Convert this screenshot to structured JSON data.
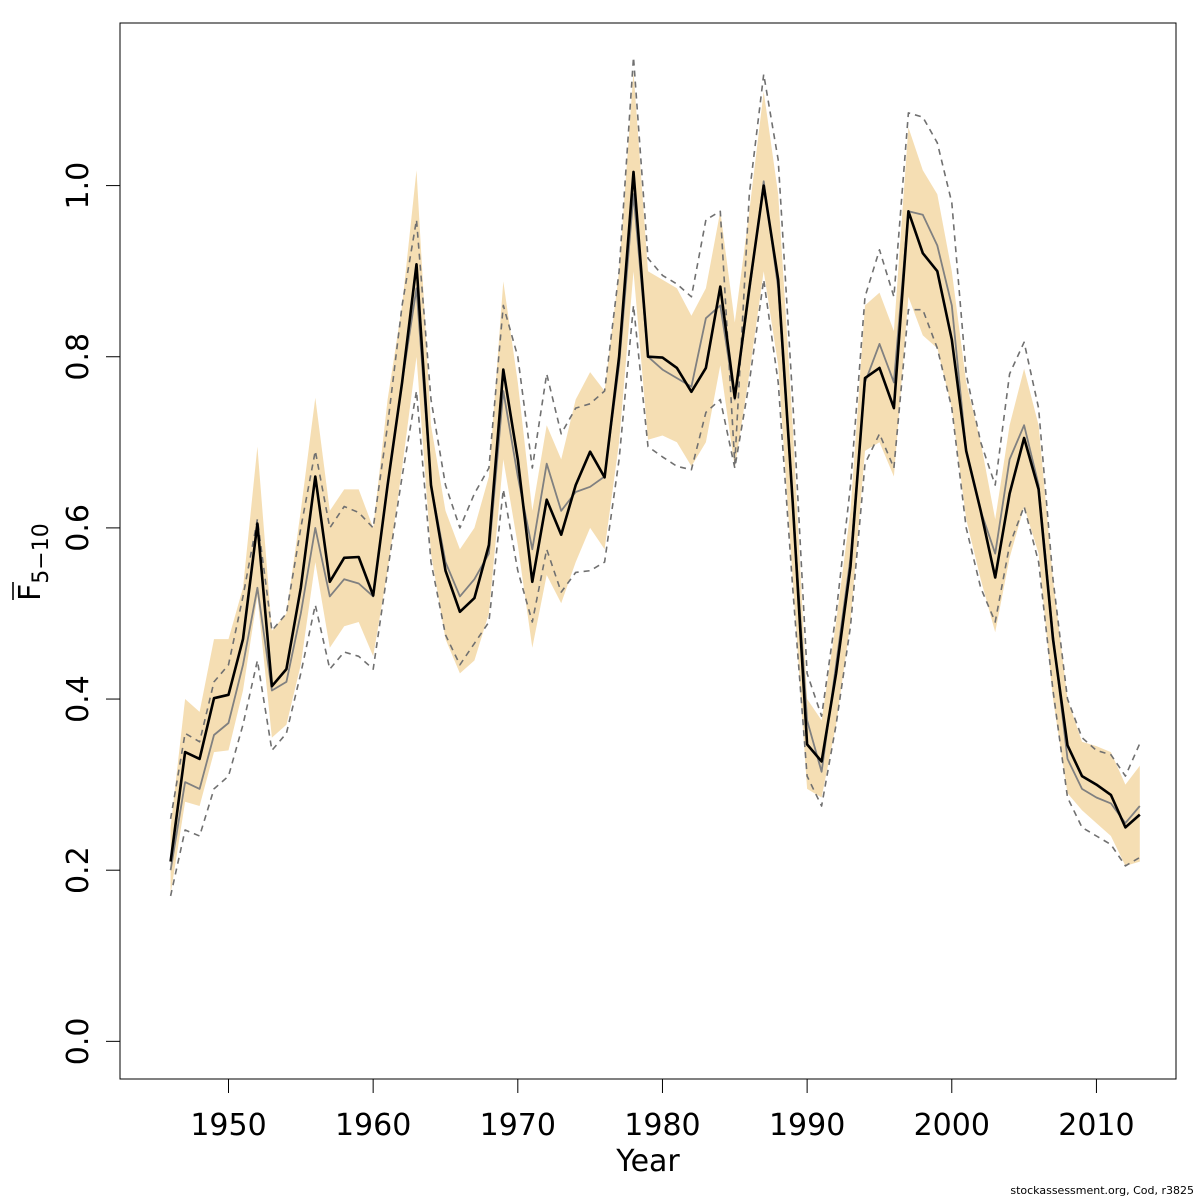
{
  "chart_data": {
    "type": "line",
    "xlabel": "Year",
    "ylabel_main": "F",
    "ylabel_sub": "5−10",
    "xlim": [
      1942.5,
      2015.5
    ],
    "ylim": [
      -0.044,
      1.19
    ],
    "x_ticks": [
      1950,
      1960,
      1970,
      1980,
      1990,
      2000,
      2010
    ],
    "y_ticks": [
      0.0,
      0.2,
      0.4,
      0.6,
      0.8,
      1.0
    ],
    "y_tick_labels": [
      "0.0",
      "0.2",
      "0.4",
      "0.6",
      "0.8",
      "1.0"
    ],
    "colors": {
      "band": "#f5deb3",
      "estimate": "#000000",
      "alt_estimate": "#808080",
      "alt_bounds": "#707070"
    },
    "x": [
      1946,
      1947,
      1948,
      1949,
      1950,
      1951,
      1952,
      1953,
      1954,
      1955,
      1956,
      1957,
      1958,
      1959,
      1960,
      1961,
      1962,
      1963,
      1964,
      1965,
      1966,
      1967,
      1968,
      1969,
      1970,
      1971,
      1972,
      1973,
      1974,
      1975,
      1976,
      1977,
      1978,
      1979,
      1980,
      1981,
      1982,
      1983,
      1984,
      1985,
      1986,
      1987,
      1988,
      1989,
      1990,
      1991,
      1992,
      1993,
      1994,
      1995,
      1996,
      1997,
      1998,
      1999,
      2000,
      2001,
      2002,
      2003,
      2004,
      2005,
      2006,
      2007,
      2008,
      2009,
      2010,
      2011,
      2012,
      2013
    ],
    "series": [
      {
        "role": "estimate",
        "values": [
          0.21,
          0.338,
          0.33,
          0.401,
          0.405,
          0.47,
          0.605,
          0.415,
          0.435,
          0.53,
          0.66,
          0.537,
          0.565,
          0.566,
          0.521,
          0.65,
          0.77,
          0.908,
          0.65,
          0.55,
          0.502,
          0.518,
          0.58,
          0.785,
          0.68,
          0.537,
          0.633,
          0.592,
          0.65,
          0.689,
          0.659,
          0.8,
          1.016,
          0.8,
          0.799,
          0.787,
          0.759,
          0.787,
          0.882,
          0.752,
          0.88,
          1.0,
          0.89,
          0.63,
          0.347,
          0.327,
          0.43,
          0.555,
          0.775,
          0.787,
          0.74,
          0.97,
          0.921,
          0.9,
          0.82,
          0.69,
          0.62,
          0.542,
          0.64,
          0.705,
          0.645,
          0.47,
          0.346,
          0.31,
          0.3,
          0.288,
          0.25,
          0.265
        ]
      },
      {
        "role": "band-upper",
        "values": [
          0.25,
          0.4,
          0.385,
          0.47,
          0.47,
          0.53,
          0.695,
          0.48,
          0.5,
          0.62,
          0.752,
          0.62,
          0.645,
          0.645,
          0.6,
          0.75,
          0.86,
          1.018,
          0.72,
          0.62,
          0.575,
          0.6,
          0.66,
          0.888,
          0.77,
          0.62,
          0.72,
          0.68,
          0.75,
          0.782,
          0.76,
          0.9,
          1.133,
          0.9,
          0.89,
          0.88,
          0.848,
          0.88,
          0.97,
          0.84,
          0.97,
          1.11,
          0.99,
          0.72,
          0.4,
          0.375,
          0.49,
          0.62,
          0.86,
          0.875,
          0.83,
          1.068,
          1.018,
          0.99,
          0.9,
          0.77,
          0.7,
          0.61,
          0.72,
          0.786,
          0.72,
          0.54,
          0.4,
          0.35,
          0.345,
          0.338,
          0.3,
          0.322
        ]
      },
      {
        "role": "band-lower",
        "values": [
          0.172,
          0.28,
          0.275,
          0.338,
          0.34,
          0.41,
          0.52,
          0.355,
          0.37,
          0.44,
          0.56,
          0.46,
          0.485,
          0.49,
          0.45,
          0.55,
          0.67,
          0.8,
          0.57,
          0.47,
          0.43,
          0.445,
          0.5,
          0.68,
          0.58,
          0.46,
          0.545,
          0.512,
          0.56,
          0.6,
          0.575,
          0.7,
          0.9,
          0.703,
          0.708,
          0.7,
          0.672,
          0.7,
          0.79,
          0.67,
          0.78,
          0.9,
          0.79,
          0.54,
          0.295,
          0.285,
          0.37,
          0.49,
          0.69,
          0.7,
          0.66,
          0.87,
          0.825,
          0.81,
          0.74,
          0.61,
          0.54,
          0.478,
          0.565,
          0.625,
          0.57,
          0.4,
          0.29,
          0.27,
          0.255,
          0.24,
          0.205,
          0.21
        ]
      },
      {
        "role": "alt-estimate",
        "values": [
          0.2,
          0.303,
          0.295,
          0.358,
          0.372,
          0.44,
          0.53,
          0.41,
          0.42,
          0.5,
          0.6,
          0.52,
          0.54,
          0.535,
          0.52,
          0.65,
          0.77,
          0.88,
          0.65,
          0.56,
          0.52,
          0.54,
          0.57,
          0.76,
          0.66,
          0.575,
          0.675,
          0.62,
          0.642,
          0.648,
          0.66,
          0.79,
          0.99,
          0.8,
          0.785,
          0.775,
          0.765,
          0.845,
          0.86,
          0.75,
          0.875,
          1.005,
          0.88,
          0.63,
          0.375,
          0.315,
          0.44,
          0.565,
          0.77,
          0.815,
          0.77,
          0.97,
          0.966,
          0.93,
          0.86,
          0.69,
          0.62,
          0.57,
          0.68,
          0.72,
          0.65,
          0.475,
          0.33,
          0.295,
          0.285,
          0.278,
          0.255,
          0.275
        ]
      },
      {
        "role": "alt-upper",
        "values": [
          0.26,
          0.36,
          0.35,
          0.42,
          0.44,
          0.52,
          0.61,
          0.48,
          0.5,
          0.6,
          0.69,
          0.6,
          0.625,
          0.618,
          0.6,
          0.72,
          0.86,
          0.96,
          0.75,
          0.65,
          0.6,
          0.64,
          0.67,
          0.86,
          0.8,
          0.67,
          0.78,
          0.71,
          0.74,
          0.745,
          0.76,
          0.9,
          1.15,
          0.915,
          0.895,
          0.885,
          0.87,
          0.96,
          0.97,
          0.675,
          0.99,
          1.13,
          1.03,
          0.75,
          0.43,
          0.38,
          0.5,
          0.65,
          0.87,
          0.925,
          0.87,
          1.085,
          1.08,
          1.05,
          0.98,
          0.78,
          0.7,
          0.65,
          0.78,
          0.817,
          0.74,
          0.54,
          0.4,
          0.355,
          0.34,
          0.335,
          0.31,
          0.348
        ]
      },
      {
        "role": "alt-lower",
        "values": [
          0.17,
          0.247,
          0.24,
          0.295,
          0.31,
          0.37,
          0.445,
          0.34,
          0.36,
          0.43,
          0.51,
          0.435,
          0.455,
          0.45,
          0.435,
          0.55,
          0.66,
          0.76,
          0.56,
          0.475,
          0.44,
          0.465,
          0.49,
          0.645,
          0.55,
          0.49,
          0.575,
          0.525,
          0.548,
          0.55,
          0.56,
          0.68,
          0.86,
          0.695,
          0.683,
          0.672,
          0.668,
          0.735,
          0.75,
          0.67,
          0.77,
          0.89,
          0.77,
          0.53,
          0.31,
          0.275,
          0.37,
          0.485,
          0.675,
          0.71,
          0.67,
          0.855,
          0.855,
          0.81,
          0.74,
          0.6,
          0.53,
          0.49,
          0.58,
          0.625,
          0.56,
          0.41,
          0.285,
          0.25,
          0.24,
          0.23,
          0.205,
          0.215
        ]
      }
    ]
  },
  "caption": "stockassessment.org, Cod, r3825"
}
